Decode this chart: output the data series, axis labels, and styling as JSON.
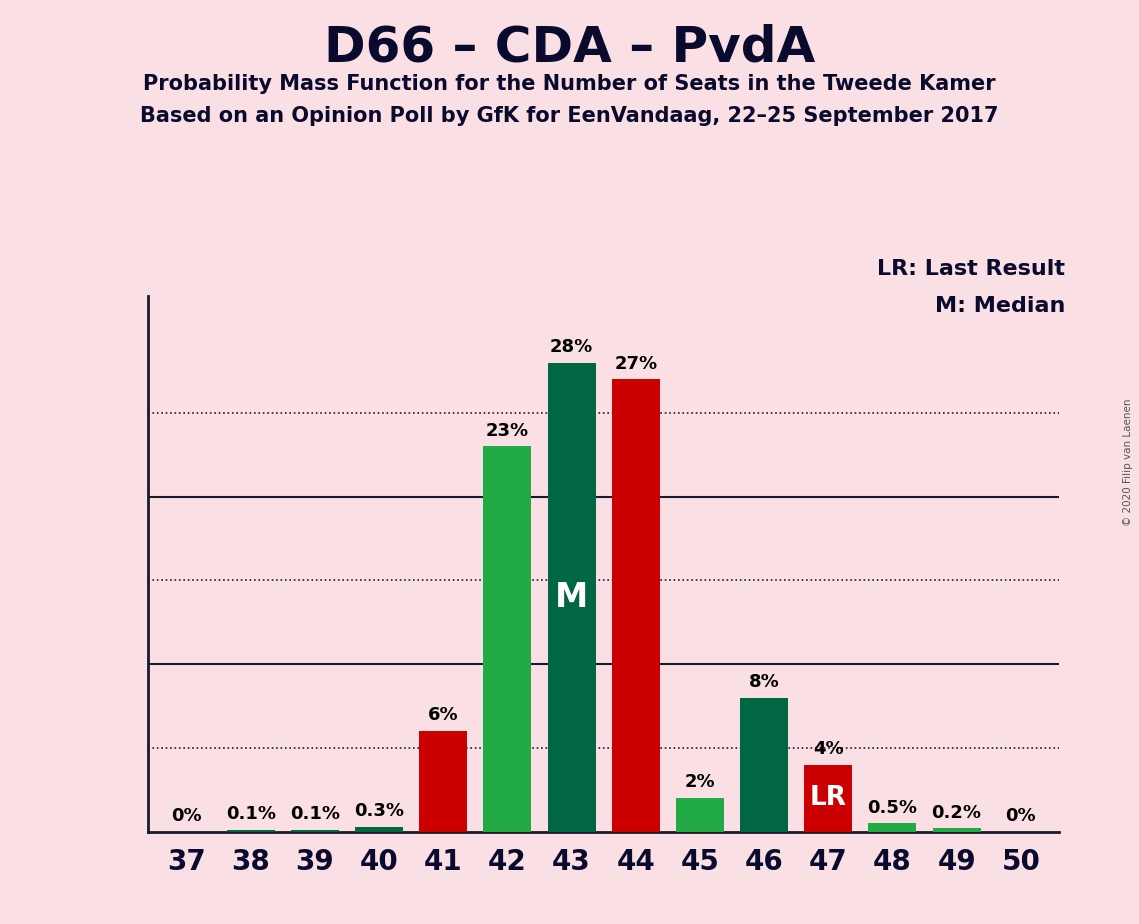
{
  "title": "D66 – CDA – PvdA",
  "subtitle1": "Probability Mass Function for the Number of Seats in the Tweede Kamer",
  "subtitle2": "Based on an Opinion Poll by GfK for EenVandaag, 22–25 September 2017",
  "copyright": "© 2020 Filip van Laenen",
  "seats": [
    37,
    38,
    39,
    40,
    41,
    42,
    43,
    44,
    45,
    46,
    47,
    48,
    49,
    50
  ],
  "pmf_values": [
    0.0,
    0.1,
    0.1,
    0.3,
    6.0,
    23.0,
    28.0,
    27.0,
    2.0,
    8.0,
    4.0,
    0.5,
    0.2,
    0.0
  ],
  "bar_colors": [
    "#006644",
    "#006644",
    "#006644",
    "#006644",
    "#CC0000",
    "#22AA44",
    "#006644",
    "#CC0000",
    "#22AA44",
    "#006644",
    "#CC0000",
    "#22AA44",
    "#22AA44",
    "#22AA44"
  ],
  "pmf_labels": [
    "0%",
    "0.1%",
    "0.1%",
    "0.3%",
    "6%",
    "23%",
    "28%",
    "27%",
    "2%",
    "8%",
    "4%",
    "0.5%",
    "0.2%",
    "0%"
  ],
  "median_seat": 43,
  "lr_seat": 47,
  "background_color": "#FAE0E4",
  "bar_width": 0.75,
  "ylim": [
    0,
    32
  ],
  "solid_lines": [
    10,
    20
  ],
  "dotted_lines": [
    5,
    15,
    25
  ],
  "legend_lr": "LR: Last Result",
  "legend_m": "M: Median"
}
